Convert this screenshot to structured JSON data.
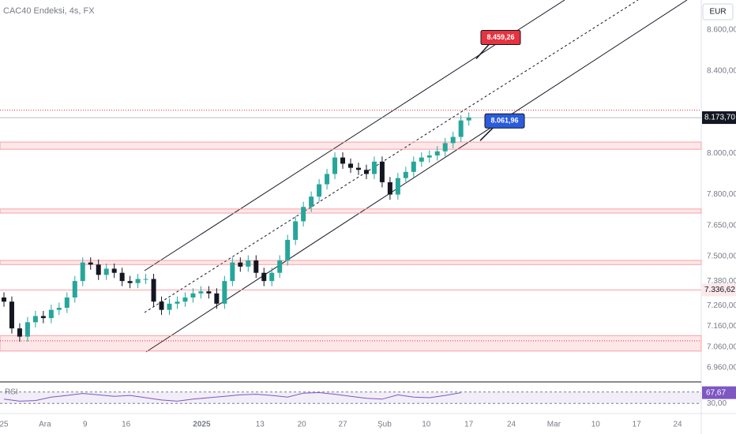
{
  "chart_data": {
    "type": "candlestick",
    "title": "CAC40 Endeksi, 4s, FX",
    "currency": "EUR",
    "x": [
      0,
      1,
      2,
      3,
      4,
      5,
      6,
      7,
      8,
      9,
      10,
      11,
      12,
      13,
      14,
      15,
      16,
      17,
      18,
      19,
      20,
      21,
      22,
      23,
      24,
      25,
      26,
      27,
      28,
      29,
      30,
      31,
      32,
      33,
      34,
      35,
      36,
      37,
      38,
      39,
      40,
      41,
      42,
      43,
      44,
      45,
      46,
      47,
      48,
      49,
      50,
      51,
      52,
      53,
      54,
      55,
      56,
      57,
      58,
      59
    ],
    "open": [
      7300,
      7280,
      7150,
      7110,
      7180,
      7210,
      7200,
      7240,
      7250,
      7300,
      7380,
      7470,
      7460,
      7410,
      7440,
      7420,
      7380,
      7370,
      7390,
      7390,
      7280,
      7240,
      7270,
      7280,
      7300,
      7320,
      7330,
      7320,
      7270,
      7380,
      7470,
      7450,
      7480,
      7420,
      7380,
      7420,
      7480,
      7580,
      7670,
      7740,
      7790,
      7850,
      7900,
      7980,
      7950,
      7930,
      7920,
      7900,
      7960,
      7860,
      7800,
      7880,
      7910,
      7960,
      7980,
      7990,
      8010,
      8050,
      8080,
      8160
    ],
    "high": [
      7325,
      7305,
      7175,
      7205,
      7235,
      7235,
      7265,
      7275,
      7325,
      7405,
      7495,
      7495,
      7485,
      7465,
      7465,
      7445,
      7405,
      7415,
      7415,
      7415,
      7305,
      7295,
      7305,
      7325,
      7345,
      7355,
      7355,
      7345,
      7405,
      7495,
      7495,
      7505,
      7505,
      7445,
      7445,
      7505,
      7605,
      7695,
      7765,
      7815,
      7875,
      7925,
      8005,
      8005,
      7975,
      7955,
      7945,
      7985,
      7985,
      7885,
      7905,
      7935,
      7985,
      8005,
      8015,
      8035,
      8075,
      8105,
      8185,
      8199
    ],
    "low": [
      7255,
      7125,
      7085,
      7085,
      7155,
      7175,
      7175,
      7215,
      7225,
      7275,
      7355,
      7435,
      7385,
      7385,
      7395,
      7355,
      7345,
      7345,
      7365,
      7255,
      7215,
      7215,
      7245,
      7255,
      7275,
      7295,
      7295,
      7245,
      7245,
      7355,
      7425,
      7425,
      7395,
      7355,
      7355,
      7395,
      7455,
      7555,
      7645,
      7715,
      7765,
      7825,
      7875,
      7925,
      7905,
      7895,
      7875,
      7875,
      7835,
      7775,
      7775,
      7855,
      7885,
      7935,
      7955,
      7965,
      7985,
      8025,
      8055,
      8135
    ],
    "close": [
      7280,
      7150,
      7110,
      7180,
      7210,
      7200,
      7240,
      7250,
      7300,
      7380,
      7470,
      7460,
      7410,
      7440,
      7420,
      7380,
      7370,
      7390,
      7390,
      7280,
      7240,
      7270,
      7280,
      7300,
      7320,
      7330,
      7320,
      7270,
      7380,
      7470,
      7450,
      7480,
      7420,
      7380,
      7420,
      7480,
      7580,
      7670,
      7740,
      7790,
      7850,
      7900,
      7980,
      7950,
      7930,
      7920,
      7900,
      7960,
      7860,
      7800,
      7880,
      7910,
      7960,
      7980,
      7990,
      8010,
      8050,
      8080,
      8160,
      8174
    ],
    "up_color": "#26a69a",
    "down_color": "#131722",
    "xlim": [
      -0.5,
      88.5
    ],
    "xticks": [
      {
        "value": 0,
        "label": "25"
      },
      {
        "value": 5.2,
        "label": "Ara"
      },
      {
        "value": 10.3,
        "label": "9"
      },
      {
        "value": 15.5,
        "label": "16"
      },
      {
        "value": 25.1,
        "label": "2025"
      },
      {
        "value": 32.5,
        "label": "13"
      },
      {
        "value": 37.8,
        "label": "20"
      },
      {
        "value": 43,
        "label": "27"
      },
      {
        "value": 48.3,
        "label": "Şub"
      },
      {
        "value": 53.6,
        "label": "10"
      },
      {
        "value": 59,
        "label": "17"
      },
      {
        "value": 64.4,
        "label": "24"
      },
      {
        "value": 69.8,
        "label": "Mar"
      },
      {
        "value": 75.1,
        "label": "10"
      },
      {
        "value": 80.3,
        "label": "17"
      },
      {
        "value": 85.5,
        "label": "24"
      }
    ],
    "ylim": [
      6890,
      8745
    ],
    "yticks": [
      {
        "value": 8600,
        "label": "8.600,00"
      },
      {
        "value": 8400,
        "label": "8.400,00"
      },
      {
        "value": 8000,
        "label": "8.000,00"
      },
      {
        "value": 7800,
        "label": "7.800,00"
      },
      {
        "value": 7650,
        "label": "7.650,00"
      },
      {
        "value": 7500,
        "label": "7.500,00"
      },
      {
        "value": 7380,
        "label": "7.380,00"
      },
      {
        "value": 7260,
        "label": "7.260,00"
      },
      {
        "value": 7160,
        "label": "7.160,00"
      },
      {
        "value": 7060,
        "label": "7.060,00"
      },
      {
        "value": 6960,
        "label": "6.960,00"
      }
    ],
    "last_price": {
      "value": 8173.7,
      "label": "8.173,70"
    },
    "price_labels": [
      {
        "value": 7336.62,
        "label": "7.336,62"
      }
    ],
    "annotations": [
      {
        "value": 8459.26,
        "label": "8.459,26",
        "color": "#e53340"
      },
      {
        "value": 8061.96,
        "label": "8.061,96",
        "color": "#2a5cdc"
      }
    ],
    "zones": [
      [
        8020,
        8055
      ],
      [
        7710,
        7730
      ],
      [
        7460,
        7480
      ],
      [
        7040,
        7115
      ]
    ],
    "levels": [
      7336.62
    ],
    "dotted_levels": [
      8210,
      7090
    ],
    "rsi": {
      "name": "RSI",
      "color": "#7e57c2",
      "x": [
        0,
        2,
        4,
        6,
        8,
        10,
        12,
        14,
        16,
        18,
        20,
        22,
        24,
        26,
        28,
        30,
        32,
        34,
        36,
        38,
        40,
        42,
        44,
        46,
        48,
        50,
        52,
        54,
        56,
        58
      ],
      "values": [
        45,
        38,
        40,
        52,
        58,
        65,
        60,
        55,
        58,
        50,
        42,
        38,
        45,
        50,
        55,
        60,
        62,
        58,
        52,
        66,
        68,
        62,
        55,
        48,
        45,
        60,
        52,
        50,
        58,
        67.67
      ],
      "ylim": [
        0,
        100
      ],
      "yticks": [
        {
          "value": 30,
          "label": "30,00"
        }
      ],
      "last": {
        "value": 67.67,
        "label": "67,67"
      }
    }
  }
}
